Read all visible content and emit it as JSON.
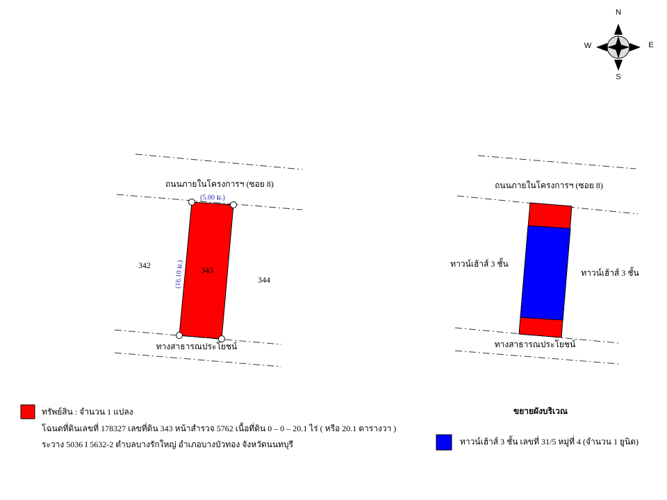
{
  "compass": {
    "north": "N",
    "east": "E",
    "south": "S",
    "west": "W"
  },
  "site_plan": {
    "road_top": "ถนนภายในโครงการฯ (ซอย 8)",
    "width_label": "(5.00 ม.)",
    "length_label": "(16.10 ม.)",
    "plot_left": "342",
    "plot_subject": "343",
    "plot_right": "344",
    "road_bottom": "ทางสาธารณประโยชน์"
  },
  "enlarged_plan": {
    "road_top": "ถนนภายในโครงการฯ (ซอย 8)",
    "neighbor_left": "ทาวน์เฮ้าส์ 3 ชั้น",
    "neighbor_right": "ทาวน์เฮ้าส์ 3 ชั้น",
    "road_bottom": "ทางสาธารณประโยชน์"
  },
  "legend": {
    "property": "ทรัพย์สิน : จำนวน 1 แปลง",
    "deed": "โฉนดที่ดินเลขที่  178327  เลขที่ดิน  343  หน้าสำรวจ  5762  เนื้อที่ดิน 0 – 0 – 20.1 ไร่ ( หรือ 20.1 ตารางวา )",
    "location": "ระวาง 5036 I 5632-2  ตำบลบางรักใหญ่  อำเภอบางบัวทอง  จังหวัดนนทบุรี",
    "enlarged_title": "ขยายผังบริเวณ",
    "building": "ทาวน์เฮ้าส์ 3 ชั้น  เลขที่ 31/5  หมู่ที่ 4  (จำนวน 1 ยูนิต)"
  }
}
